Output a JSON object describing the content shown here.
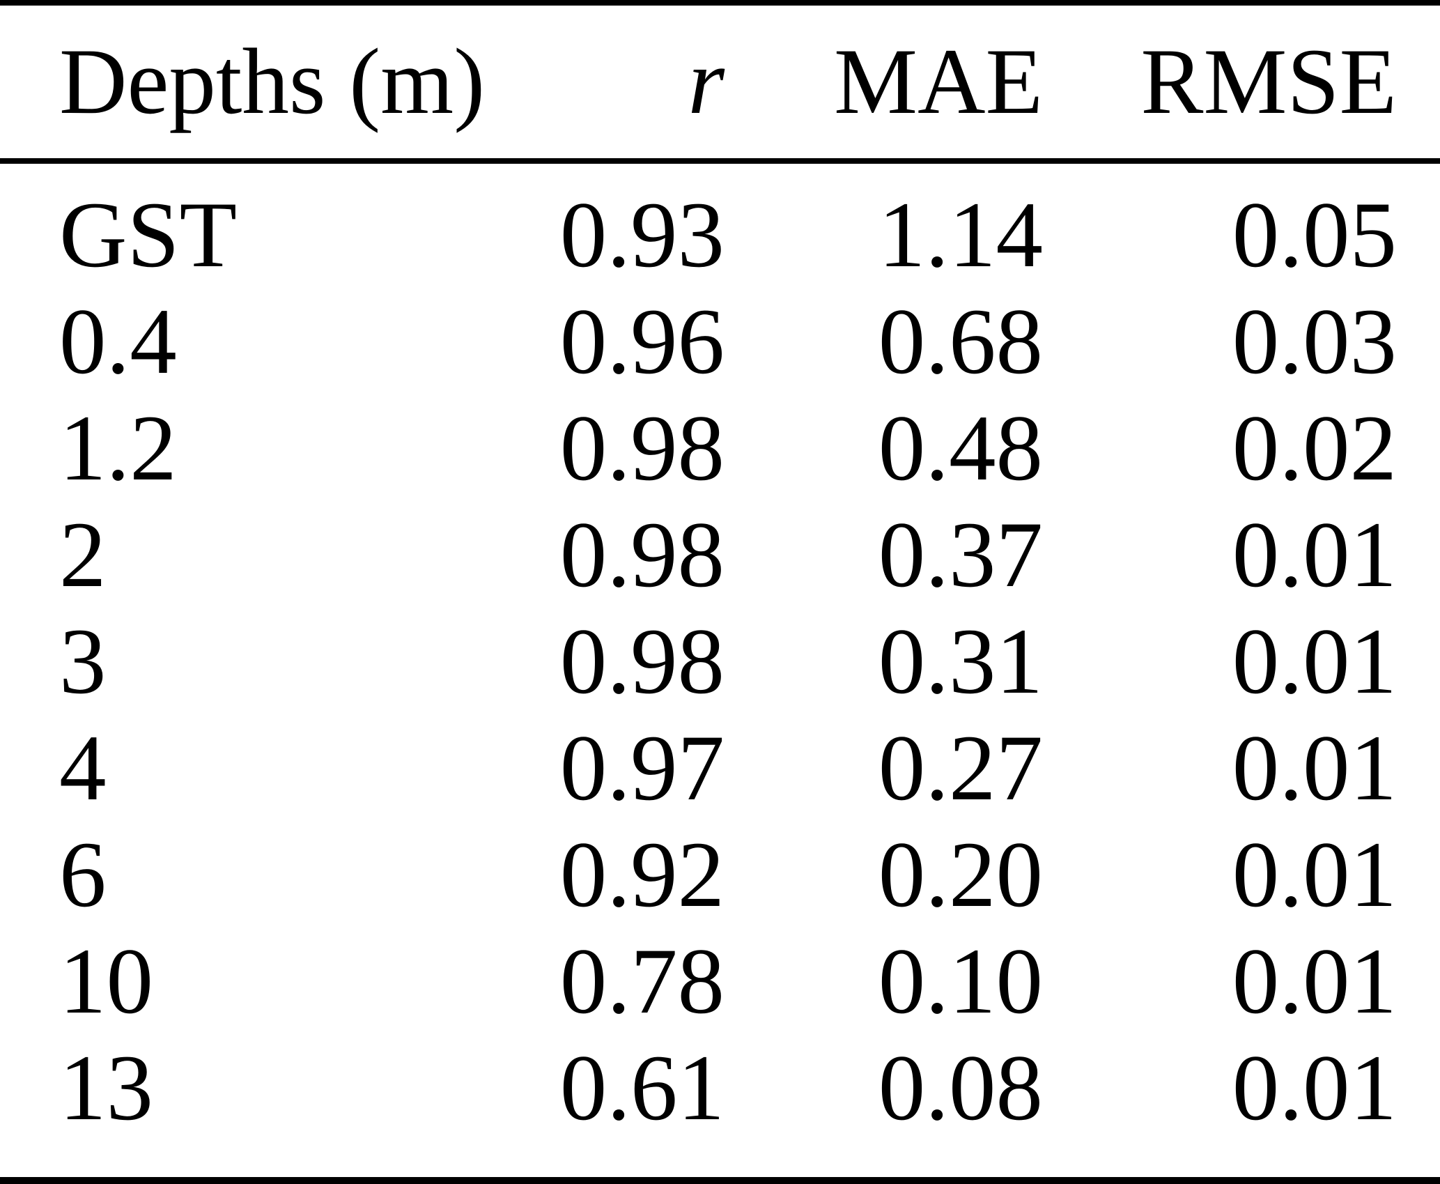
{
  "figure": {
    "background": "#ffffff",
    "text_color": "#000000",
    "rule_color": "#000000"
  },
  "table": {
    "headers": {
      "depths": "Depths (m)",
      "r": "r",
      "mae": "MAE",
      "rmse": "RMSE"
    },
    "rows": [
      {
        "depth": "GST",
        "r": "0.93",
        "mae": "1.14",
        "rmse": "0.05"
      },
      {
        "depth": "0.4",
        "r": "0.96",
        "mae": "0.68",
        "rmse": "0.03"
      },
      {
        "depth": "1.2",
        "r": "0.98",
        "mae": "0.48",
        "rmse": "0.02"
      },
      {
        "depth": "2",
        "r": "0.98",
        "mae": "0.37",
        "rmse": "0.01"
      },
      {
        "depth": "3",
        "r": "0.98",
        "mae": "0.31",
        "rmse": "0.01"
      },
      {
        "depth": "4",
        "r": "0.97",
        "mae": "0.27",
        "rmse": "0.01"
      },
      {
        "depth": "6",
        "r": "0.92",
        "mae": "0.20",
        "rmse": "0.01"
      },
      {
        "depth": "10",
        "r": "0.78",
        "mae": "0.10",
        "rmse": "0.01"
      },
      {
        "depth": "13",
        "r": "0.61",
        "mae": "0.08",
        "rmse": "0.01"
      }
    ]
  },
  "chart_data": {
    "type": "table",
    "title": "",
    "columns": [
      "Depths (m)",
      "r",
      "MAE",
      "RMSE"
    ],
    "rows": [
      [
        "GST",
        0.93,
        1.14,
        0.05
      ],
      [
        "0.4",
        0.96,
        0.68,
        0.03
      ],
      [
        "1.2",
        0.98,
        0.48,
        0.02
      ],
      [
        "2",
        0.98,
        0.37,
        0.01
      ],
      [
        "3",
        0.98,
        0.31,
        0.01
      ],
      [
        "4",
        0.97,
        0.27,
        0.01
      ],
      [
        "6",
        0.92,
        0.2,
        0.01
      ],
      [
        "10",
        0.78,
        0.1,
        0.01
      ],
      [
        "13",
        0.61,
        0.08,
        0.01
      ]
    ]
  }
}
